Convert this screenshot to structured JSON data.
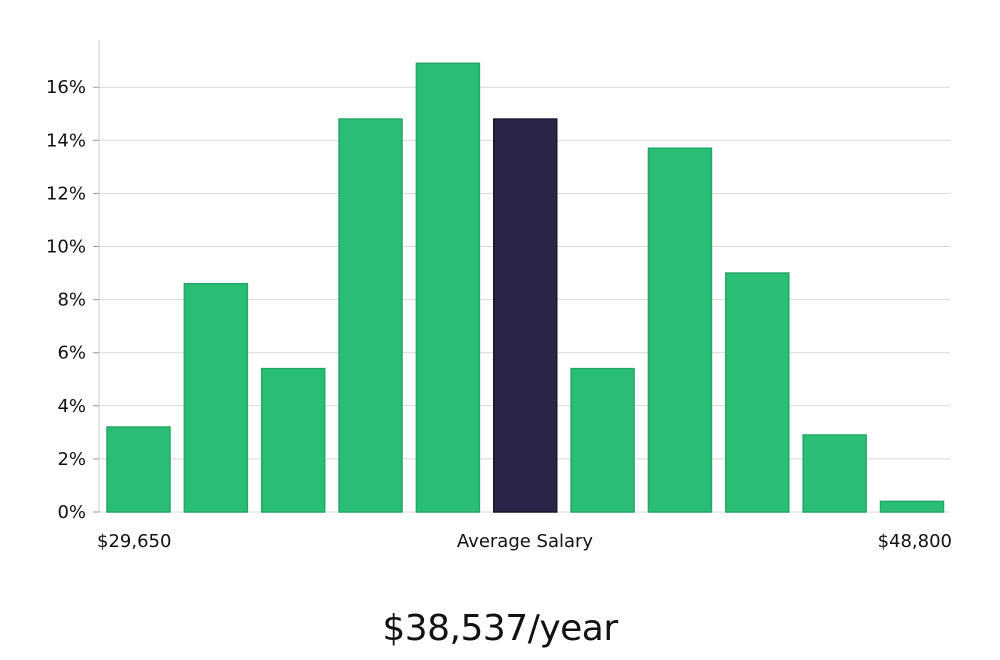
{
  "chart_data": {
    "type": "bar",
    "title": "",
    "xlabel": "Average Salary",
    "ylabel": "",
    "x_min_label": "$29,650",
    "x_max_label": "$48,800",
    "ylim": [
      0,
      17.5
    ],
    "yticks": [
      0,
      2,
      4,
      6,
      8,
      10,
      12,
      14,
      16
    ],
    "ytick_labels": [
      "0%",
      "2%",
      "4%",
      "6%",
      "8%",
      "10%",
      "12%",
      "14%",
      "16%"
    ],
    "grid": true,
    "values": [
      3.2,
      8.6,
      5.4,
      14.8,
      16.9,
      14.8,
      5.4,
      13.7,
      9.0,
      2.9,
      0.4
    ],
    "highlight_index": 5,
    "colors": {
      "bar": "#2abd76",
      "bar_stroke": "#22a866",
      "highlight": "#292546",
      "highlight_stroke": "#1a1730",
      "grid": "#d9d9d9",
      "axis": "#cccccc"
    }
  },
  "headline": "$38,537/year"
}
